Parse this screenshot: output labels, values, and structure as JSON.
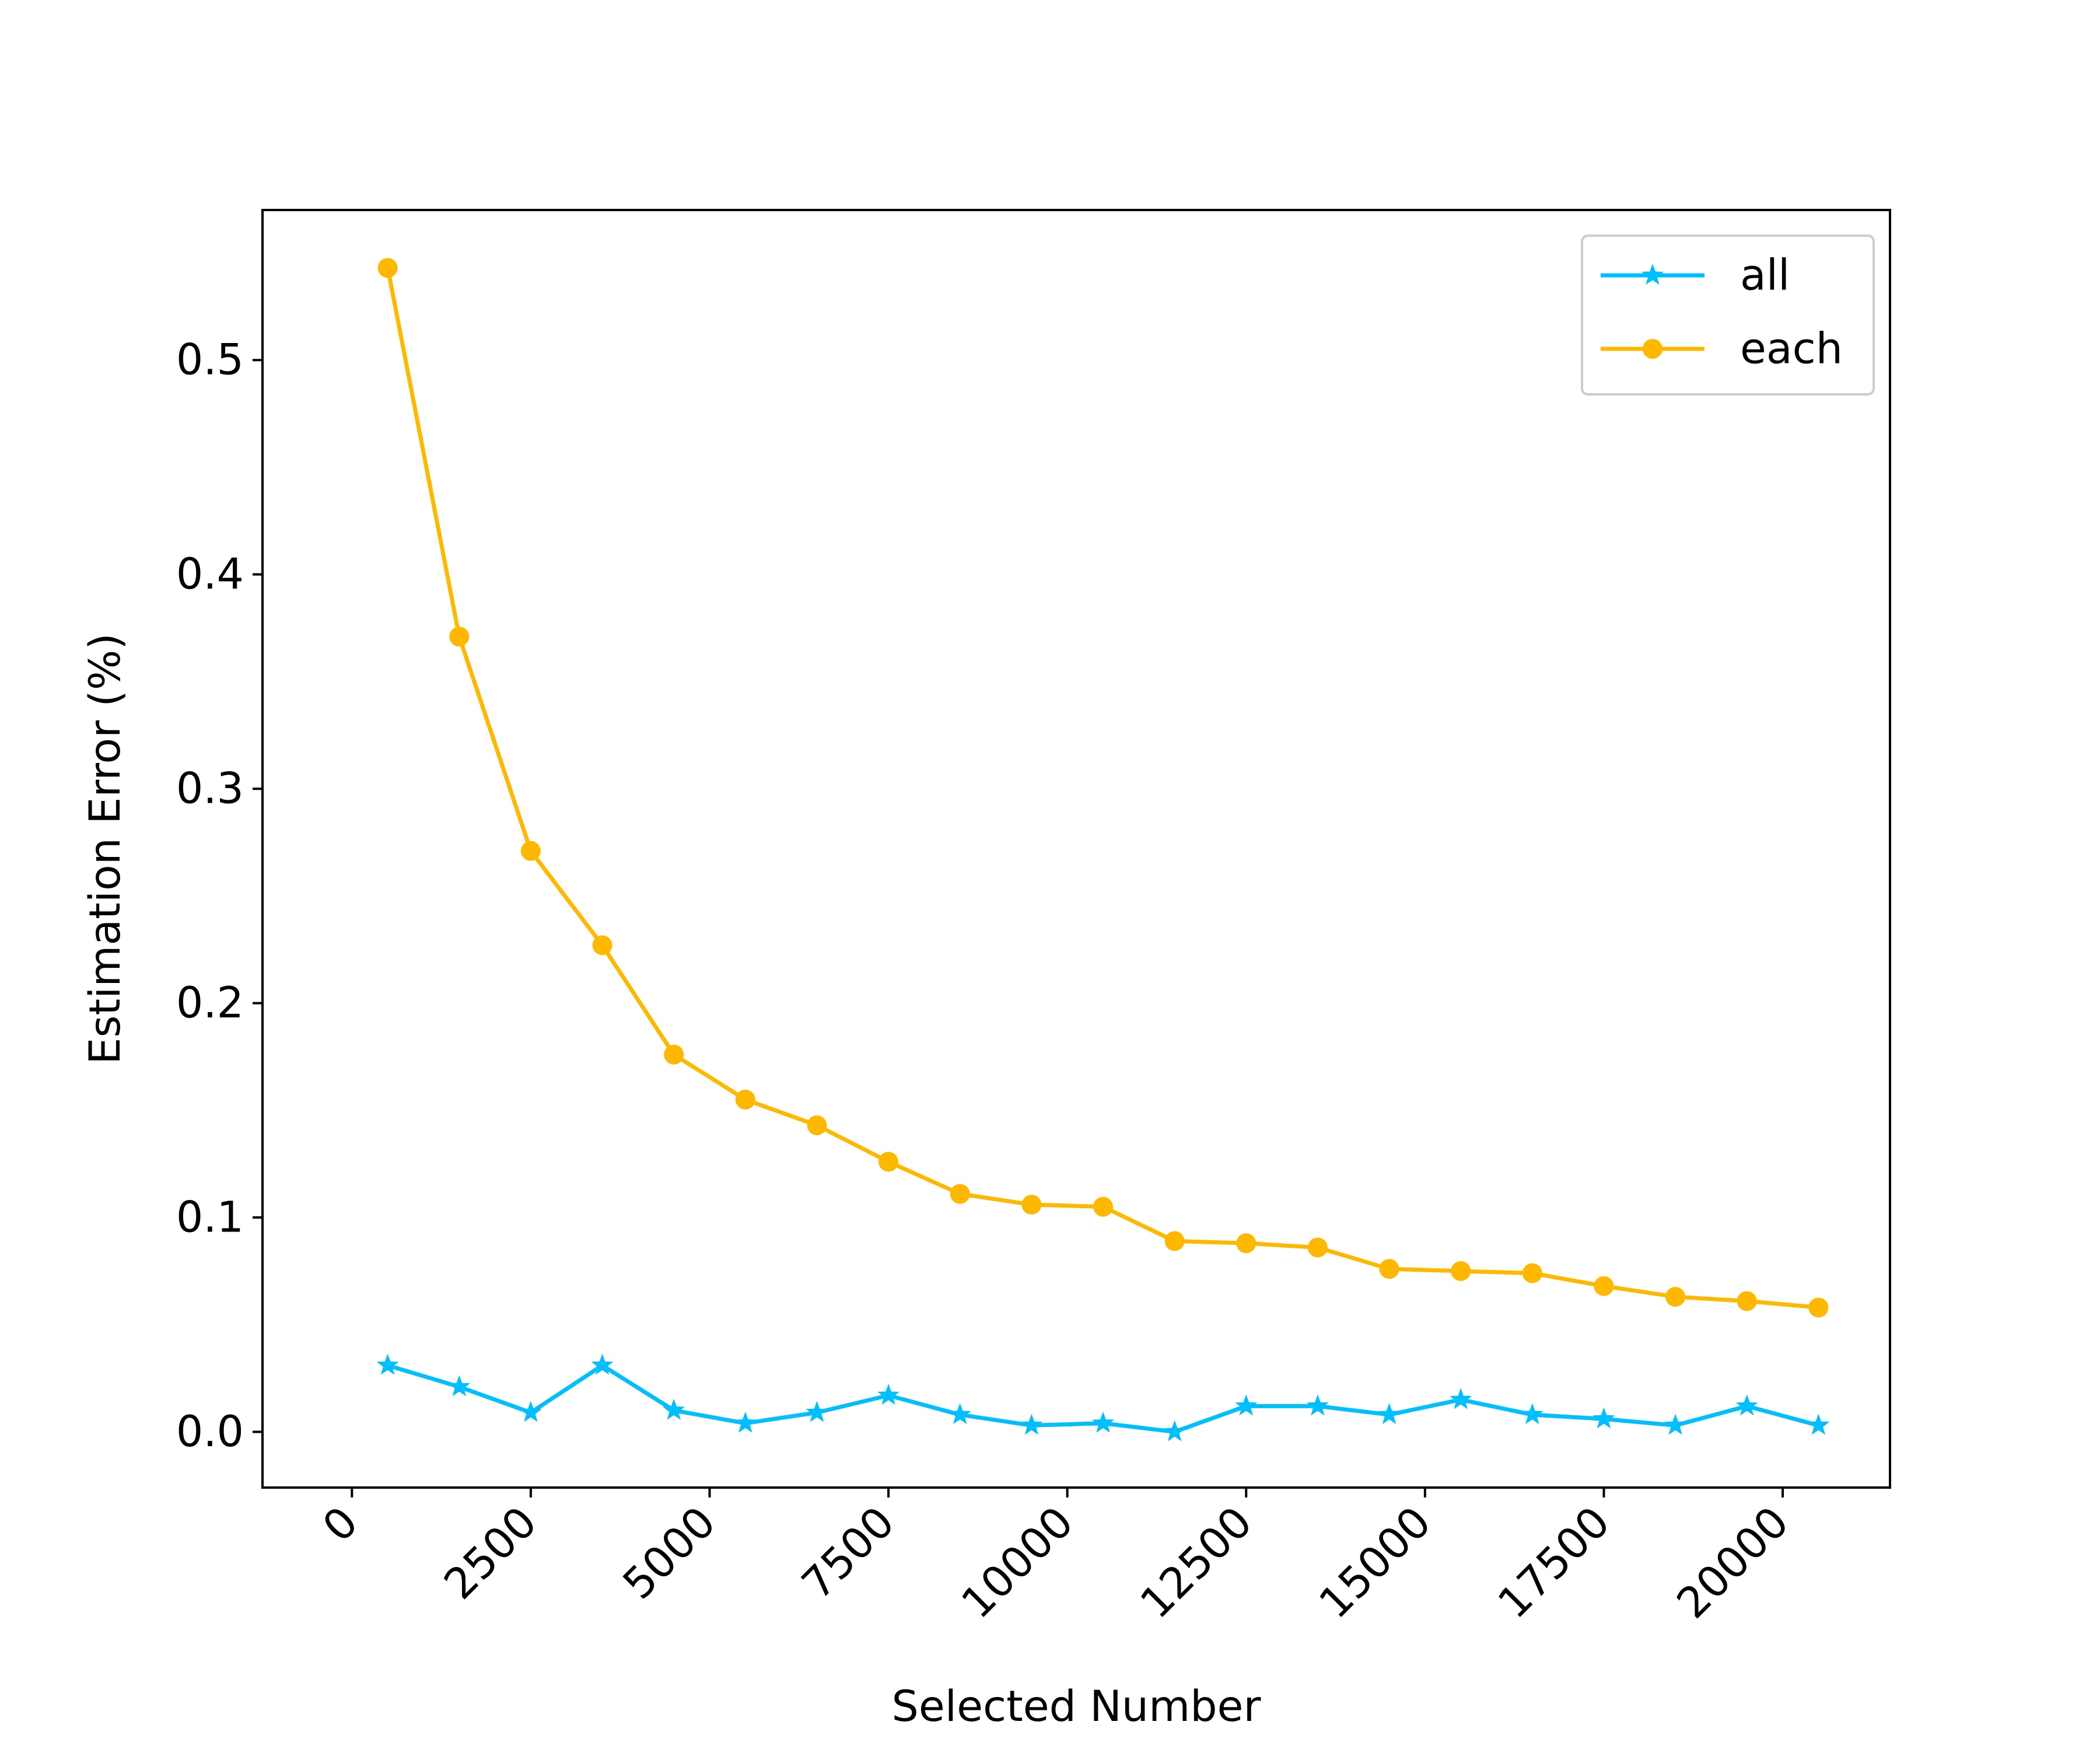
{
  "chart_data": {
    "type": "line",
    "title": "",
    "xlabel": "Selected Number",
    "ylabel": "Estimation Error (%)",
    "xlim": [
      -1250,
      21500
    ],
    "ylim": [
      -0.026,
      0.57
    ],
    "xticks": [
      0,
      2500,
      5000,
      7500,
      10000,
      12500,
      15000,
      17500,
      20000
    ],
    "xtick_labels": [
      "0",
      "2500",
      "5000",
      "7500",
      "10000",
      "12500",
      "15000",
      "17500",
      "20000"
    ],
    "yticks": [
      0.0,
      0.1,
      0.2,
      0.3,
      0.4,
      0.5
    ],
    "ytick_labels": [
      "0.0",
      "0.1",
      "0.2",
      "0.3",
      "0.4",
      "0.5"
    ],
    "grid": false,
    "legend_position": "top-right",
    "x": [
      500,
      1500,
      2500,
      3500,
      4500,
      5500,
      6500,
      7500,
      8500,
      9500,
      10500,
      11500,
      12500,
      13500,
      14500,
      15500,
      16500,
      17500,
      18500,
      19500,
      20500
    ],
    "series": [
      {
        "name": "all",
        "color": "#00bfff",
        "marker": "star",
        "values": [
          0.031,
          0.021,
          0.009,
          0.031,
          0.01,
          0.004,
          0.009,
          0.017,
          0.008,
          0.003,
          0.004,
          0.0,
          0.012,
          0.012,
          0.008,
          0.015,
          0.008,
          0.006,
          0.003,
          0.012,
          0.003
        ]
      },
      {
        "name": "each",
        "color": "#ffb800",
        "marker": "circle",
        "values": [
          0.543,
          0.371,
          0.271,
          0.227,
          0.176,
          0.155,
          0.143,
          0.126,
          0.111,
          0.106,
          0.105,
          0.089,
          0.088,
          0.086,
          0.076,
          0.075,
          0.074,
          0.068,
          0.063,
          0.061,
          0.058
        ]
      }
    ]
  }
}
